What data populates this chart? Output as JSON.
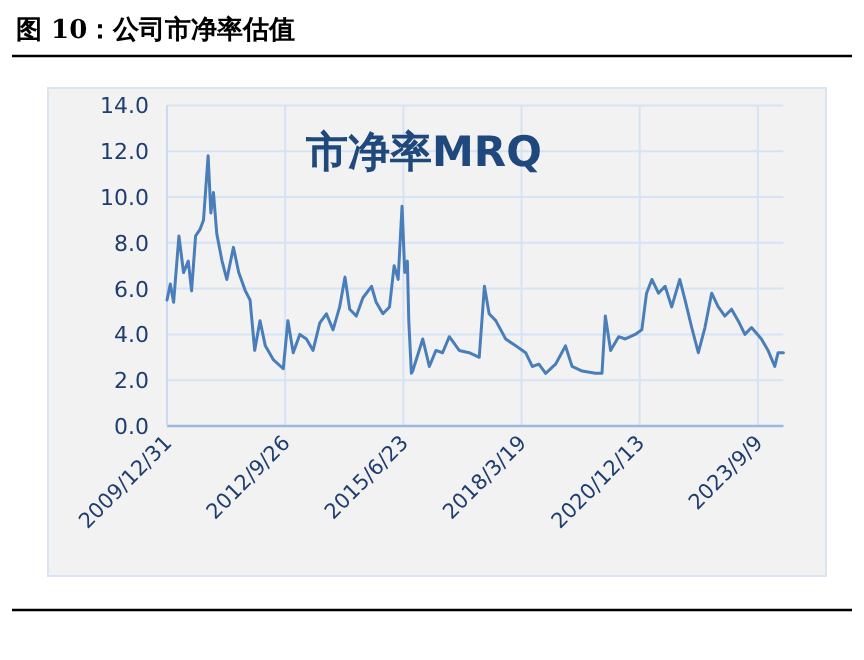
{
  "chart_data": {
    "type": "line",
    "title": "图 10：公司市净率估值",
    "grid": true,
    "xlim": [
      "2009-12-31",
      "2024-04-12"
    ],
    "xticks": [
      {
        "value": "2009-12-31",
        "label": "2009/12/31"
      },
      {
        "value": "2012-09-26",
        "label": "2012/9/26"
      },
      {
        "value": "2015-06-23",
        "label": "2015/6/23"
      },
      {
        "value": "2018-03-19",
        "label": "2018/3/19"
      },
      {
        "value": "2020-12-13",
        "label": "2020/12/13"
      },
      {
        "value": "2023-09-09",
        "label": "2023/9/9"
      }
    ],
    "ylim": [
      0,
      14
    ],
    "yticks": [
      {
        "value": 0,
        "label": "0.0"
      },
      {
        "value": 2,
        "label": "2.0"
      },
      {
        "value": 4,
        "label": "4.0"
      },
      {
        "value": 6,
        "label": "6.0"
      },
      {
        "value": 8,
        "label": "8.0"
      },
      {
        "value": 10,
        "label": "10.0"
      },
      {
        "value": 12,
        "label": "12.0"
      },
      {
        "value": 14,
        "label": "14.0"
      }
    ],
    "x": [
      "2009-12-31",
      "2010-01-28",
      "2010-02-25",
      "2010-04-11",
      "2010-05-20",
      "2010-06-29",
      "2010-07-27",
      "2010-08-30",
      "2010-10-08",
      "2010-11-05",
      "2010-12-14",
      "2011-01-06",
      "2011-01-28",
      "2011-02-25",
      "2011-04-11",
      "2011-05-21",
      "2011-07-16",
      "2011-08-30",
      "2011-10-25",
      "2011-12-04",
      "2012-01-12",
      "2012-02-26",
      "2012-04-11",
      "2012-06-17",
      "2012-09-10",
      "2012-10-19",
      "2012-12-03",
      "2013-01-28",
      "2013-03-25",
      "2013-05-20",
      "2013-07-16",
      "2013-09-10",
      "2013-11-05",
      "2013-12-31",
      "2014-02-14",
      "2014-03-26",
      "2014-05-21",
      "2014-07-16",
      "2014-09-27",
      "2014-11-05",
      "2015-01-01",
      "2015-02-26",
      "2015-04-06",
      "2015-05-10",
      "2015-06-12",
      "2015-07-05",
      "2015-07-27",
      "2015-08-08",
      "2015-08-30",
      "2015-09-10",
      "2015-12-04",
      "2016-01-29",
      "2016-03-25",
      "2016-05-20",
      "2016-07-16",
      "2016-10-08",
      "2016-12-31",
      "2017-03-26",
      "2017-05-09",
      "2017-06-18",
      "2017-08-13",
      "2017-11-05",
      "2018-01-29",
      "2018-04-23",
      "2018-06-18",
      "2018-08-13",
      "2018-10-09",
      "2019-01-01",
      "2019-03-26",
      "2019-05-21",
      "2019-08-14",
      "2019-12-04",
      "2020-01-29",
      "2020-02-26",
      "2020-04-11",
      "2020-06-18",
      "2020-08-13",
      "2020-11-05",
      "2020-12-31",
      "2021-02-09",
      "2021-03-26",
      "2021-05-21",
      "2021-07-16",
      "2021-09-10",
      "2021-11-17",
      "2022-01-01",
      "2022-02-26",
      "2022-04-23",
      "2022-06-18",
      "2022-08-14",
      "2022-10-09",
      "2022-12-04",
      "2023-01-29",
      "2023-03-26",
      "2023-05-22",
      "2023-07-17",
      "2023-10-09",
      "2023-12-04",
      "2024-01-30",
      "2024-02-27",
      "2024-04-12"
    ],
    "series": [
      {
        "name": "市净率MRQ",
        "color": "#4a7ebb",
        "values": [
          5.5,
          6.2,
          5.4,
          8.3,
          6.7,
          7.2,
          5.9,
          8.3,
          8.6,
          9.0,
          11.8,
          9.3,
          10.2,
          8.4,
          7.2,
          6.4,
          7.8,
          6.7,
          5.9,
          5.5,
          3.3,
          4.6,
          3.5,
          2.9,
          2.5,
          4.6,
          3.2,
          4.0,
          3.8,
          3.3,
          4.5,
          4.9,
          4.2,
          5.2,
          6.5,
          5.1,
          4.8,
          5.6,
          6.1,
          5.4,
          4.9,
          5.2,
          7.0,
          6.4,
          9.6,
          6.7,
          7.2,
          4.6,
          2.3,
          2.4,
          3.8,
          2.6,
          3.3,
          3.2,
          3.9,
          3.3,
          3.2,
          3.0,
          6.1,
          4.9,
          4.6,
          3.8,
          3.5,
          3.2,
          2.6,
          2.7,
          2.3,
          2.7,
          3.5,
          2.6,
          2.4,
          2.3,
          2.3,
          4.8,
          3.3,
          3.9,
          3.8,
          4.0,
          4.2,
          5.8,
          6.4,
          5.8,
          6.1,
          5.2,
          6.4,
          5.5,
          4.3,
          3.2,
          4.3,
          5.8,
          5.2,
          4.8,
          5.1,
          4.6,
          4.0,
          4.3,
          3.8,
          3.3,
          2.6,
          3.2,
          3.2
        ]
      }
    ]
  }
}
